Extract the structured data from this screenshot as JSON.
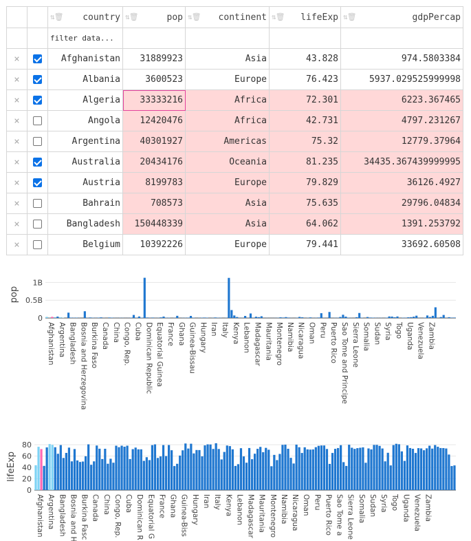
{
  "table": {
    "columns": [
      {
        "key": "country",
        "label": "country"
      },
      {
        "key": "pop",
        "label": "pop"
      },
      {
        "key": "continent",
        "label": "continent"
      },
      {
        "key": "lifeExp",
        "label": "lifeExp"
      },
      {
        "key": "gdpPercap",
        "label": "gdpPercap"
      }
    ],
    "filter_placeholder": "filter data...",
    "delete_glyph": "×",
    "rows": [
      {
        "country": "Afghanistan",
        "pop": "31889923",
        "continent": "Asia",
        "lifeExp": "43.828",
        "gdpPercap": "974.5803384",
        "checked": true,
        "highlighted": false
      },
      {
        "country": "Albania",
        "pop": "3600523",
        "continent": "Europe",
        "lifeExp": "76.423",
        "gdpPercap": "5937.029525999998",
        "checked": true,
        "highlighted": false
      },
      {
        "country": "Algeria",
        "pop": "33333216",
        "continent": "Africa",
        "lifeExp": "72.301",
        "gdpPercap": "6223.367465",
        "checked": true,
        "highlighted": true,
        "active": true
      },
      {
        "country": "Angola",
        "pop": "12420476",
        "continent": "Africa",
        "lifeExp": "42.731",
        "gdpPercap": "4797.231267",
        "checked": false,
        "highlighted": true
      },
      {
        "country": "Argentina",
        "pop": "40301927",
        "continent": "Americas",
        "lifeExp": "75.32",
        "gdpPercap": "12779.37964",
        "checked": false,
        "highlighted": true
      },
      {
        "country": "Australia",
        "pop": "20434176",
        "continent": "Oceania",
        "lifeExp": "81.235",
        "gdpPercap": "34435.367439999995",
        "checked": true,
        "highlighted": true
      },
      {
        "country": "Austria",
        "pop": "8199783",
        "continent": "Europe",
        "lifeExp": "79.829",
        "gdpPercap": "36126.4927",
        "checked": true,
        "highlighted": true
      },
      {
        "country": "Bahrain",
        "pop": "708573",
        "continent": "Asia",
        "lifeExp": "75.635",
        "gdpPercap": "29796.04834",
        "checked": false,
        "highlighted": true
      },
      {
        "country": "Bangladesh",
        "pop": "150448339",
        "continent": "Asia",
        "lifeExp": "64.062",
        "gdpPercap": "1391.253792",
        "checked": false,
        "highlighted": true
      },
      {
        "country": "Belgium",
        "pop": "10392226",
        "continent": "Europe",
        "lifeExp": "79.441",
        "gdpPercap": "33692.60508",
        "checked": false,
        "highlighted": false
      }
    ]
  },
  "colors": {
    "bar": "#1f77d0",
    "bar_checked": "#7fd3f5",
    "bar_active": "#ff69b4",
    "highlight": "#ffd8d8"
  },
  "chart_data": [
    {
      "type": "bar",
      "ylabel": "pop",
      "ylim": [
        0,
        1318683096
      ],
      "yticks": [
        0,
        500000000,
        1000000000
      ],
      "ytick_labels": [
        "0",
        "0.5B",
        "1B"
      ],
      "tick_labels": [
        "Afghanistan",
        "Argentina",
        "Bangladesh",
        "Bosnia and Herzegovina",
        "Burkina Faso",
        "Canada",
        "China",
        "Congo, Rep.",
        "Cuba",
        "Dominican Republic",
        "Equatorial Guinea",
        "France",
        "Ghana",
        "Guinea-Bissau",
        "Hungary",
        "Iran",
        "Italy",
        "Kenya",
        "Lebanon",
        "Madagascar",
        "Mauritania",
        "Montenegro",
        "Namibia",
        "Nicaragua",
        "Oman",
        "Peru",
        "Puerto Rico",
        "Sao Tome and Principe",
        "Sierra Leone",
        "Somalia",
        "Sudan",
        "Syria",
        "Togo",
        "Uganda",
        "Venezuela",
        "Zambia"
      ],
      "values": [
        31889923,
        3600523,
        33333216,
        12420476,
        40301927,
        20434176,
        8199783,
        708573,
        150448339,
        10392226,
        8078314,
        9119152,
        4552198,
        1639131,
        190010647,
        7322858,
        14326203,
        8390505,
        4369038,
        10238807,
        17696293,
        4133884,
        65033,
        13327079,
        10276158,
        4018332,
        3193942,
        5238460,
        4906585,
        2280102,
        3402934,
        9956108,
        85262356,
        6939688,
        42292929,
        9319622,
        1133066016,
        13755680,
        4500000,
        12310000,
        3430000,
        5470000,
        17280000,
        40450000,
        8000000,
        9000000,
        900000,
        6400000,
        61000000,
        2000000,
        5400000,
        6200000,
        10800000,
        58500000,
        9500000,
        1500000,
        4300000,
        8600000,
        12500000,
        9600000,
        1500000,
        5400000,
        15000000,
        8300000,
        7000000,
        1300000,
        6100000,
        1130000000,
        223500000,
        70900000,
        27500000,
        4100000,
        6400000,
        58100000,
        2800000,
        127500000,
        6000000,
        35600000,
        23300000,
        49000000,
        2500000,
        3900000,
        2000000,
        2000000,
        3200000,
        6000000,
        19200000,
        13300000,
        24800000,
        12000000,
        3300000,
        1250000,
        6500000,
        31000000,
        20000000,
        2000000,
        7000000,
        16600000,
        4100000,
        5700000,
        12900000,
        135000000,
        4600000,
        3200000,
        169300000,
        3200000,
        5900000,
        6700000,
        28700000,
        91000000,
        38500000,
        10600000,
        3900000,
        800000,
        22300000,
        141000000,
        8900000,
        200000,
        27600000,
        12300000,
        10100000,
        6100000,
        4500000,
        5400000,
        2000000,
        9100000,
        43900000,
        40400000,
        20400000,
        42300000,
        1100000,
        9000000,
        7600000,
        19300000,
        23200000,
        38100000,
        65100000,
        5700000,
        1000000,
        10300000,
        71200000,
        29200000,
        60800000,
        301100000,
        3400000,
        26100000,
        85300000,
        4000000,
        22200000,
        11700000,
        12300000
      ],
      "active_index": 2,
      "checked_indices": [
        0,
        1,
        2,
        5,
        6
      ]
    },
    {
      "type": "bar",
      "ylabel": "lifeExp",
      "ylim": [
        0,
        82.6
      ],
      "yticks": [
        0,
        20,
        40,
        60,
        80
      ],
      "ytick_labels": [
        "0",
        "20",
        "40",
        "60",
        "80"
      ],
      "tick_labels": [
        "Afghanistan",
        "Argentina",
        "Bangladesh",
        "Bosnia and H",
        "Burkina Fasc",
        "Canada",
        "China",
        "Congo, Rep.",
        "Cuba",
        "Dominican R",
        "Equatorial G",
        "France",
        "Ghana",
        "Guinea-Biss",
        "Hungary",
        "Iran",
        "Italy",
        "Kenya",
        "Lebanon",
        "Madagascar",
        "Mauritania",
        "Montenegro",
        "Namibia",
        "Nicaragua",
        "Oman",
        "Peru",
        "Puerto Rico",
        "Sao Tome a",
        "Sierra Leone",
        "Somalia",
        "Sudan",
        "Syria",
        "Togo",
        "Uganda",
        "Venezuela",
        "Zambia"
      ],
      "values": [
        43.8,
        76.4,
        72.3,
        42.7,
        75.3,
        81.2,
        79.8,
        75.6,
        64.1,
        79.4,
        56.7,
        65.6,
        74.9,
        50.7,
        72.4,
        52.3,
        49.6,
        50.4,
        59.7,
        80.7,
        44.7,
        50.7,
        78.6,
        73.0,
        54.8,
        72.9,
        46.5,
        55.3,
        48.3,
        78.3,
        75.7,
        78.3,
        76.5,
        78.3,
        54.8,
        72.2,
        75.0,
        71.9,
        71.9,
        51.6,
        58.0,
        52.9,
        79.3,
        80.7,
        56.7,
        59.4,
        79.4,
        60.0,
        79.5,
        70.3,
        42.4,
        46.4,
        60.9,
        70.2,
        82.2,
        73.3,
        81.8,
        64.7,
        70.7,
        70.6,
        59.5,
        78.9,
        80.7,
        80.5,
        72.6,
        82.6,
        72.5,
        54.1,
        67.3,
        78.6,
        77.6,
        71.9,
        42.6,
        45.7,
        73.9,
        59.4,
        48.3,
        74.2,
        54.5,
        64.2,
        72.8,
        76.2,
        66.8,
        74.5,
        71.2,
        42.1,
        62.1,
        52.9,
        63.8,
        79.8,
        80.2,
        72.9,
        56.9,
        46.9,
        80.2,
        75.6,
        65.5,
        75.5,
        71.8,
        71.4,
        71.7,
        75.7,
        78.1,
        78.7,
        78.7,
        72.5,
        46.2,
        65.5,
        72.8,
        74.2,
        79.2,
        49.3,
        42.6,
        80.0,
        74.7,
        72.7,
        74.0,
        74.7,
        75.4,
        48.2,
        73.5,
        71.8,
        79.7,
        79.8,
        78.0,
        73.4,
        50.7,
        65.8,
        43.5,
        79.4,
        81.7,
        80.9,
        68.3,
        51.5,
        78.8,
        74.2,
        72.9,
        65.5,
        74.0,
        73.5,
        70.3,
        73.7,
        78.3,
        73.2,
        79.4,
        76.4,
        74.2,
        74.1,
        73.4,
        62.7,
        42.4,
        43.5
      ],
      "active_index": 2,
      "checked_indices": [
        0,
        1,
        2,
        5,
        6
      ]
    }
  ]
}
